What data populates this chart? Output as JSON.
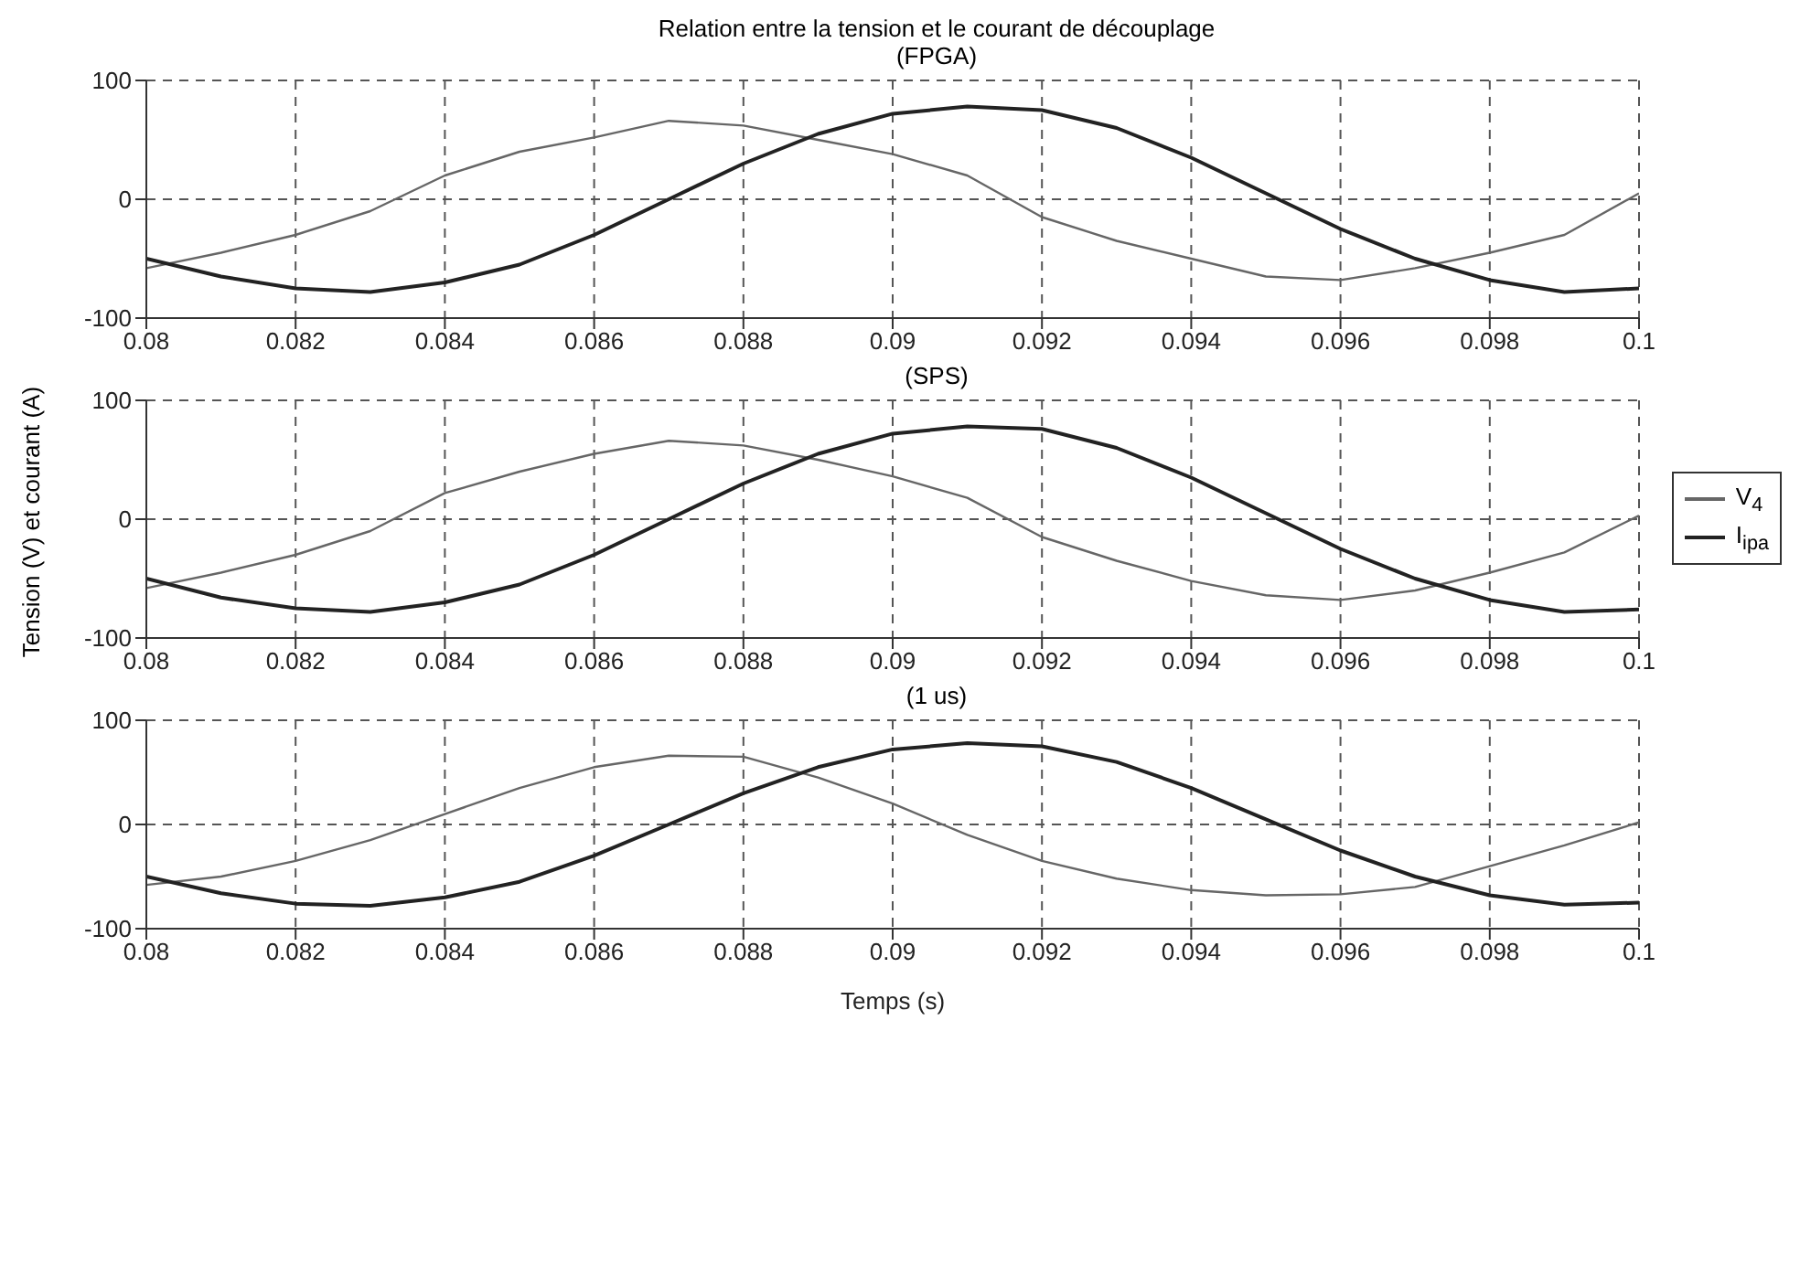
{
  "chart_data": [
    {
      "type": "line",
      "title": "Relation entre la tension et le courant de découplage",
      "subtitle": "(FPGA)",
      "x": [
        0.08,
        0.081,
        0.082,
        0.083,
        0.084,
        0.085,
        0.086,
        0.087,
        0.088,
        0.089,
        0.09,
        0.091,
        0.092,
        0.093,
        0.094,
        0.095,
        0.096,
        0.097,
        0.098,
        0.099,
        0.1
      ],
      "series": [
        {
          "color": "#666666",
          "values": [
            -58,
            -45,
            -30,
            -10,
            20,
            40,
            52,
            66,
            62,
            50,
            38,
            20,
            -15,
            -35,
            -50,
            -65,
            -68,
            -58,
            -45,
            -30,
            5
          ]
        },
        {
          "color": "#222222",
          "values": [
            -50,
            -65,
            -75,
            -78,
            -70,
            -55,
            -30,
            0,
            30,
            55,
            72,
            78,
            75,
            60,
            35,
            5,
            -25,
            -50,
            -68,
            -78,
            -75
          ]
        }
      ],
      "xlim": [
        0.08,
        0.1
      ],
      "xticks": [
        0.08,
        0.082,
        0.084,
        0.086,
        0.088,
        0.09,
        0.092,
        0.094,
        0.096,
        0.098,
        0.1
      ],
      "ylim": [
        -100,
        100
      ],
      "yticks": [
        -100,
        0,
        100
      ],
      "grid": true,
      "legend": false
    },
    {
      "type": "line",
      "title": "(SPS)",
      "ylabel": "Tension (V) et courant (A)",
      "x": [
        0.08,
        0.081,
        0.082,
        0.083,
        0.084,
        0.085,
        0.086,
        0.087,
        0.088,
        0.089,
        0.09,
        0.091,
        0.092,
        0.093,
        0.094,
        0.095,
        0.096,
        0.097,
        0.098,
        0.099,
        0.1
      ],
      "series": [
        {
          "name": "V$_{4}$",
          "color": "#666666",
          "values": [
            -58,
            -45,
            -30,
            -10,
            22,
            40,
            55,
            66,
            62,
            50,
            36,
            18,
            -15,
            -35,
            -52,
            -64,
            -68,
            -60,
            -45,
            -28,
            3
          ]
        },
        {
          "name": "I$_{ipa}$",
          "color": "#222222",
          "values": [
            -50,
            -66,
            -75,
            -78,
            -70,
            -55,
            -30,
            0,
            30,
            55,
            72,
            78,
            76,
            60,
            35,
            5,
            -25,
            -50,
            -68,
            -78,
            -76
          ]
        }
      ],
      "xlim": [
        0.08,
        0.1
      ],
      "xticks": [
        0.08,
        0.082,
        0.084,
        0.086,
        0.088,
        0.09,
        0.092,
        0.094,
        0.096,
        0.098,
        0.1
      ],
      "ylim": [
        -100,
        100
      ],
      "yticks": [
        -100,
        0,
        100
      ],
      "grid": true,
      "legend": "right"
    },
    {
      "type": "line",
      "title": "(1 us)",
      "xlabel": "Temps (s)",
      "x": [
        0.08,
        0.081,
        0.082,
        0.083,
        0.084,
        0.085,
        0.086,
        0.087,
        0.088,
        0.089,
        0.09,
        0.091,
        0.092,
        0.093,
        0.094,
        0.095,
        0.096,
        0.097,
        0.098,
        0.099,
        0.1
      ],
      "series": [
        {
          "color": "#666666",
          "values": [
            -58,
            -50,
            -35,
            -15,
            10,
            35,
            55,
            66,
            65,
            45,
            20,
            -10,
            -35,
            -52,
            -63,
            -68,
            -67,
            -60,
            -40,
            -20,
            2
          ]
        },
        {
          "color": "#222222",
          "values": [
            -50,
            -66,
            -76,
            -78,
            -70,
            -55,
            -30,
            0,
            30,
            55,
            72,
            78,
            75,
            60,
            35,
            5,
            -25,
            -50,
            -68,
            -77,
            -75
          ]
        }
      ],
      "xlim": [
        0.08,
        0.1
      ],
      "xticks": [
        0.08,
        0.082,
        0.084,
        0.086,
        0.088,
        0.09,
        0.092,
        0.094,
        0.096,
        0.098,
        0.1
      ],
      "ylim": [
        -100,
        100
      ],
      "yticks": [
        -100,
        0,
        100
      ],
      "grid": true,
      "legend": false
    }
  ]
}
